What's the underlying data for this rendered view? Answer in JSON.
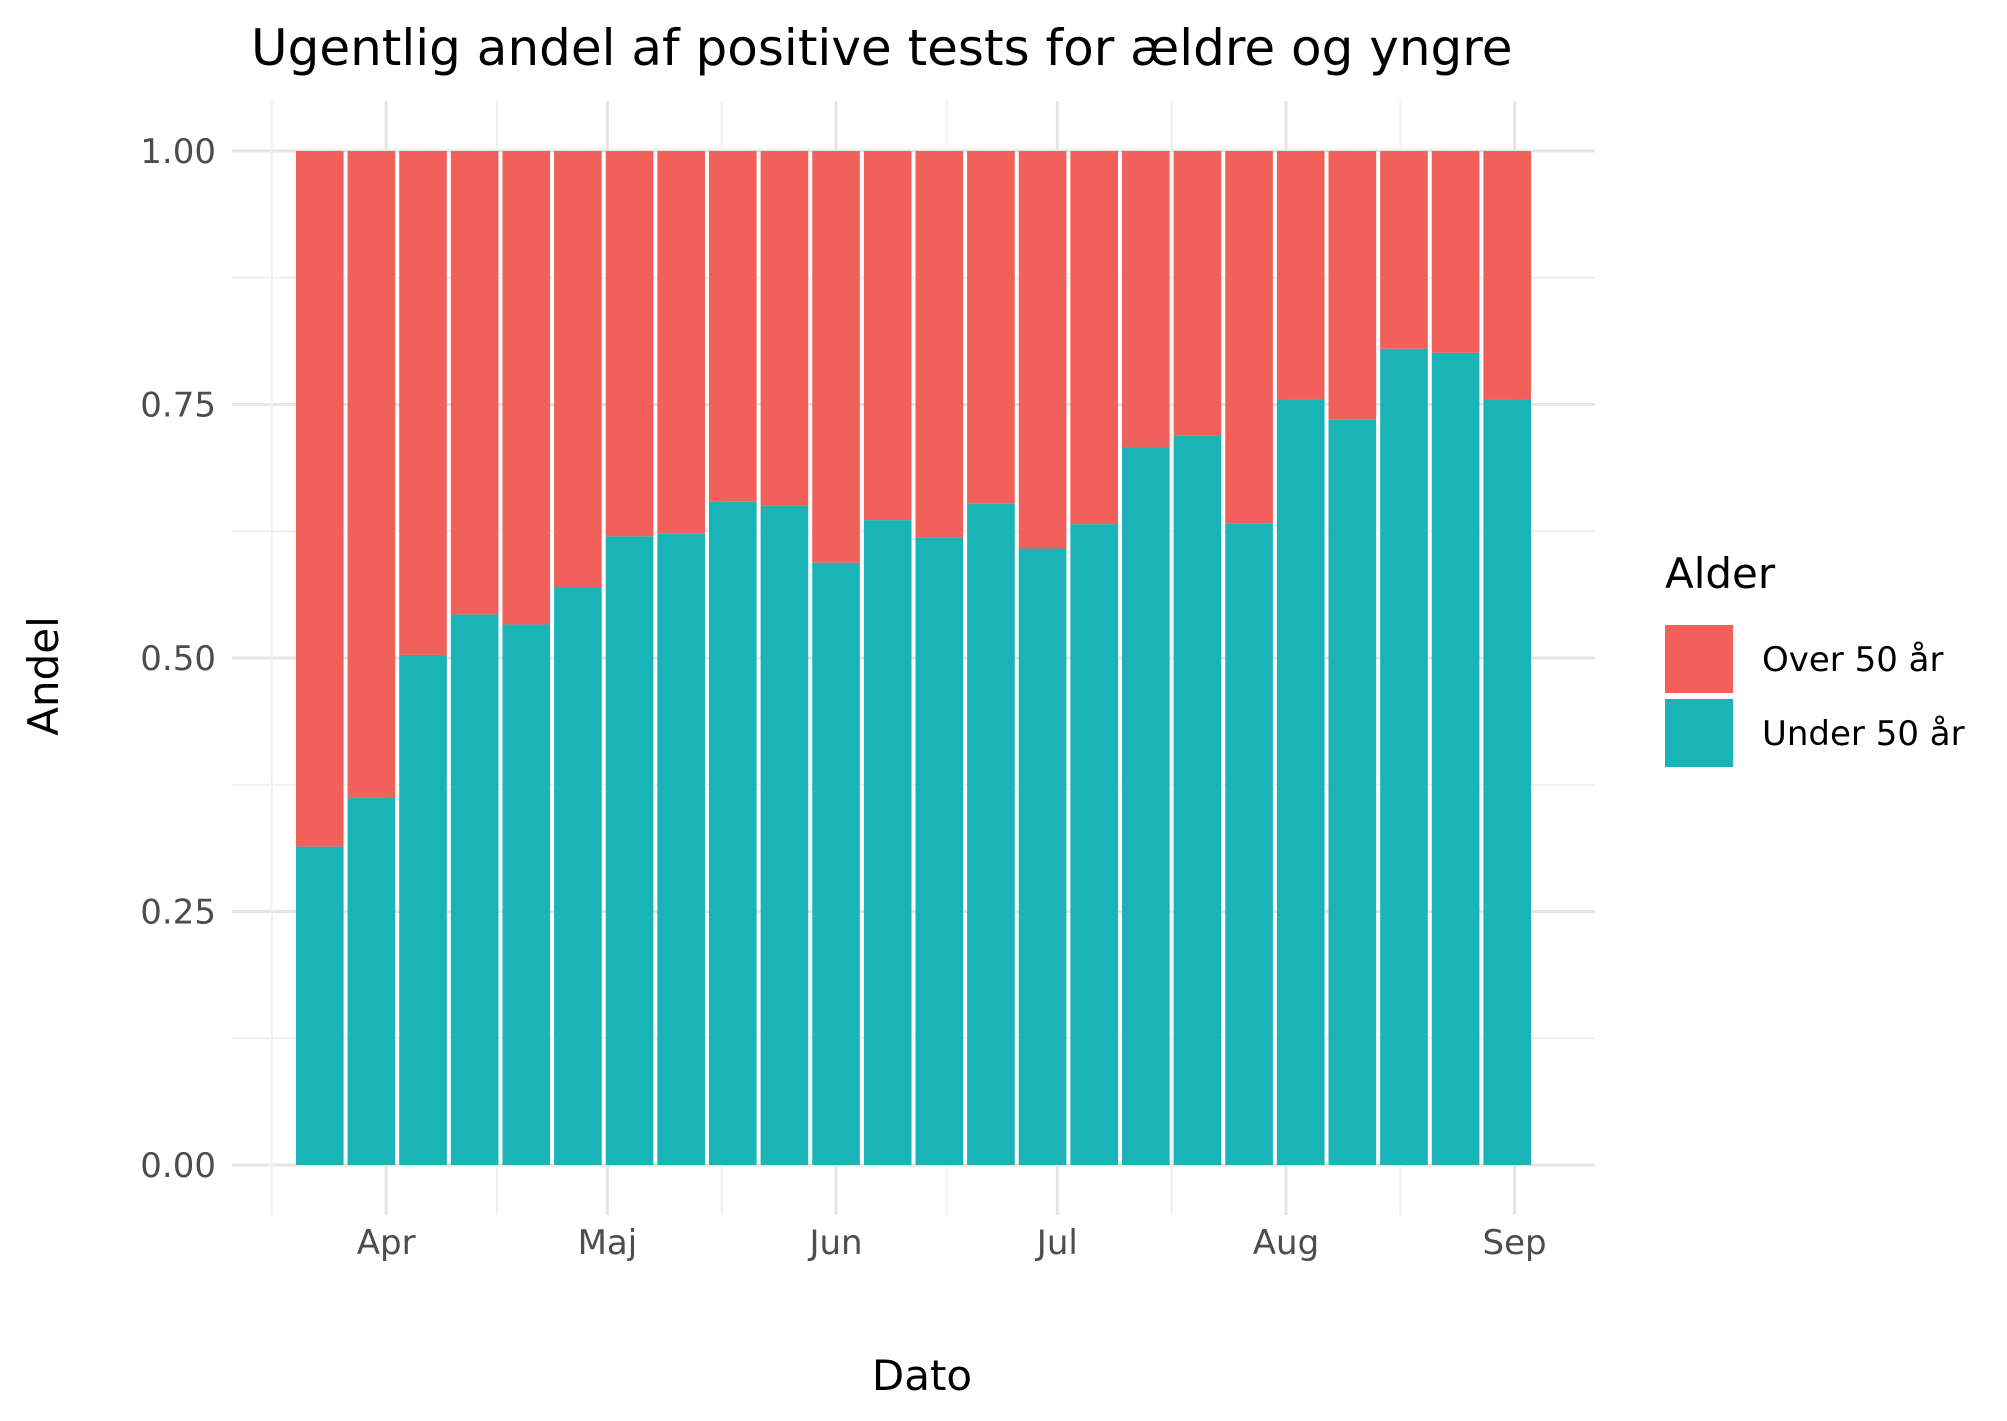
{
  "chart_data": {
    "type": "bar",
    "stacked": "fill",
    "title": "Ugentlig andel af positive tests for ældre og yngre",
    "xlabel": "Dato",
    "ylabel": "Andel",
    "ylim": [
      0,
      1
    ],
    "yticks": [
      "0.00",
      "0.25",
      "0.50",
      "0.75",
      "1.00"
    ],
    "xticks": [
      {
        "label": "Apr",
        "date": "2020-04-01"
      },
      {
        "label": "Maj",
        "date": "2020-05-01"
      },
      {
        "label": "Jun",
        "date": "2020-06-01"
      },
      {
        "label": "Jul",
        "date": "2020-07-01"
      },
      {
        "label": "Aug",
        "date": "2020-08-01"
      },
      {
        "label": "Sep",
        "date": "2020-09-01"
      }
    ],
    "grid": true,
    "legend": {
      "title": "Alder",
      "position": "right"
    },
    "x": [
      "2020-03-23",
      "2020-03-30",
      "2020-04-06",
      "2020-04-13",
      "2020-04-20",
      "2020-04-27",
      "2020-05-04",
      "2020-05-11",
      "2020-05-18",
      "2020-05-25",
      "2020-06-01",
      "2020-06-08",
      "2020-06-15",
      "2020-06-22",
      "2020-06-29",
      "2020-07-06",
      "2020-07-13",
      "2020-07-20",
      "2020-07-27",
      "2020-08-03",
      "2020-08-10",
      "2020-08-17",
      "2020-08-24",
      "2020-08-31"
    ],
    "series": [
      {
        "name": "Over 50 år",
        "color": "#F2605C",
        "values": [
          0.686,
          0.638,
          0.497,
          0.457,
          0.467,
          0.43,
          0.38,
          0.377,
          0.346,
          0.35,
          0.406,
          0.364,
          0.381,
          0.348,
          0.392,
          0.368,
          0.292,
          0.281,
          0.367,
          0.245,
          0.265,
          0.195,
          0.199,
          0.245
        ]
      },
      {
        "name": "Under 50 år",
        "color": "#1AB3B6",
        "values": [
          0.314,
          0.362,
          0.503,
          0.543,
          0.533,
          0.57,
          0.62,
          0.623,
          0.654,
          0.65,
          0.594,
          0.636,
          0.619,
          0.652,
          0.608,
          0.632,
          0.708,
          0.719,
          0.633,
          0.755,
          0.735,
          0.805,
          0.801,
          0.755
        ]
      }
    ]
  }
}
